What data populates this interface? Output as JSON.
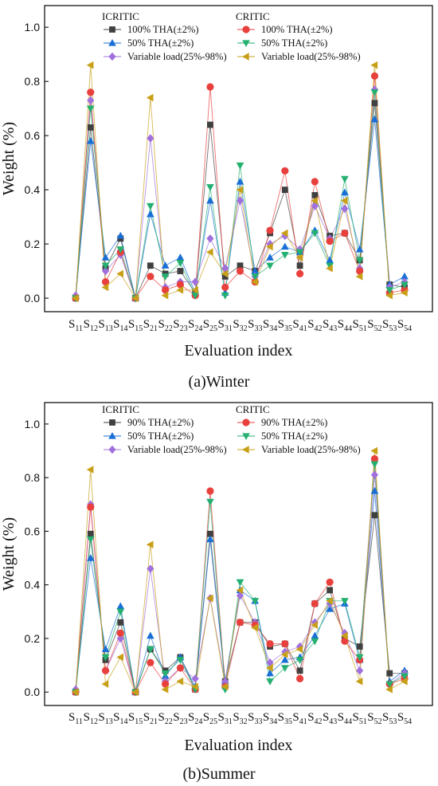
{
  "chart_data": [
    {
      "type": "line",
      "caption": "(a)Winter",
      "xlabel": "Evaluation index",
      "ylabel": "Weight (%)",
      "ylim": [
        -0.05,
        1.08
      ],
      "yticks": [
        "0.0",
        "0.2",
        "0.4",
        "0.6",
        "0.8",
        "1.0"
      ],
      "categories": [
        {
          "main": "S",
          "sub": "11"
        },
        {
          "main": "S",
          "sub": "12"
        },
        {
          "main": "S",
          "sub": "13"
        },
        {
          "main": "S",
          "sub": "14"
        },
        {
          "main": "S",
          "sub": "15"
        },
        {
          "main": "S",
          "sub": "21"
        },
        {
          "main": "S",
          "sub": "22"
        },
        {
          "main": "S",
          "sub": "23"
        },
        {
          "main": "S",
          "sub": "24"
        },
        {
          "main": "S",
          "sub": "25"
        },
        {
          "main": "S",
          "sub": "31"
        },
        {
          "main": "S",
          "sub": "32"
        },
        {
          "main": "S",
          "sub": "33"
        },
        {
          "main": "S",
          "sub": "34"
        },
        {
          "main": "S",
          "sub": "35"
        },
        {
          "main": "S",
          "sub": "41"
        },
        {
          "main": "S",
          "sub": "42"
        },
        {
          "main": "S",
          "sub": "43"
        },
        {
          "main": "S",
          "sub": "44"
        },
        {
          "main": "S",
          "sub": "51"
        },
        {
          "main": "S",
          "sub": "52"
        },
        {
          "main": "S",
          "sub": "53"
        },
        {
          "main": "S",
          "sub": "54"
        }
      ],
      "legend_groups": [
        "ICRITIC",
        "CRITIC"
      ],
      "series": [
        {
          "name": "100% THA(±2%)",
          "group": 0,
          "marker": "square",
          "color": "#404040",
          "values": [
            0.0,
            0.63,
            0.11,
            0.22,
            0.0,
            0.12,
            0.09,
            0.1,
            0.02,
            0.64,
            0.08,
            0.12,
            0.1,
            0.24,
            0.4,
            0.12,
            0.38,
            0.23,
            0.24,
            0.14,
            0.72,
            0.05,
            0.04
          ]
        },
        {
          "name": "50% THA(±2%)",
          "group": 0,
          "marker": "triangle-up",
          "color": "#1a6fd6",
          "values": [
            0.01,
            0.58,
            0.15,
            0.23,
            0.0,
            0.31,
            0.12,
            0.15,
            0.02,
            0.36,
            0.02,
            0.43,
            0.1,
            0.15,
            0.19,
            0.17,
            0.25,
            0.14,
            0.39,
            0.18,
            0.66,
            0.05,
            0.08
          ]
        },
        {
          "name": "Variable load(25%-98%)",
          "group": 0,
          "marker": "diamond",
          "color": "#a070dd",
          "values": [
            0.01,
            0.73,
            0.1,
            0.16,
            0.0,
            0.59,
            0.04,
            0.06,
            0.06,
            0.22,
            0.11,
            0.36,
            0.08,
            0.2,
            0.23,
            0.18,
            0.34,
            0.22,
            0.33,
            0.11,
            0.77,
            0.04,
            0.06
          ]
        },
        {
          "name": "100% THA(±2%)",
          "group": 1,
          "marker": "circle",
          "color": "#e8403c",
          "values": [
            0.0,
            0.76,
            0.06,
            0.17,
            0.0,
            0.08,
            0.03,
            0.05,
            0.01,
            0.78,
            0.04,
            0.1,
            0.06,
            0.25,
            0.47,
            0.09,
            0.43,
            0.21,
            0.24,
            0.1,
            0.82,
            0.02,
            0.03
          ]
        },
        {
          "name": "50% THA(±2%)",
          "group": 1,
          "marker": "triangle-down",
          "color": "#24b070",
          "values": [
            0.0,
            0.7,
            0.12,
            0.18,
            0.0,
            0.34,
            0.08,
            0.13,
            0.01,
            0.41,
            0.01,
            0.49,
            0.08,
            0.12,
            0.16,
            0.17,
            0.24,
            0.12,
            0.44,
            0.14,
            0.76,
            0.03,
            0.05
          ]
        },
        {
          "name": "Variable load(25%-98%)",
          "group": 1,
          "marker": "triangle-left",
          "color": "#c8a018",
          "values": [
            0.0,
            0.86,
            0.04,
            0.09,
            0.0,
            0.74,
            0.01,
            0.03,
            0.03,
            0.17,
            0.09,
            0.4,
            0.06,
            0.19,
            0.24,
            0.15,
            0.36,
            0.11,
            0.36,
            0.08,
            0.86,
            0.01,
            0.02
          ]
        }
      ]
    },
    {
      "type": "line",
      "caption": "(b)Summer",
      "xlabel": "Evaluation index",
      "ylabel": "Weight (%)",
      "ylim": [
        -0.05,
        1.08
      ],
      "yticks": [
        "0.0",
        "0.2",
        "0.4",
        "0.6",
        "0.8",
        "1.0"
      ],
      "categories": [
        {
          "main": "S",
          "sub": "11"
        },
        {
          "main": "S",
          "sub": "12"
        },
        {
          "main": "S",
          "sub": "13"
        },
        {
          "main": "S",
          "sub": "14"
        },
        {
          "main": "S",
          "sub": "15"
        },
        {
          "main": "S",
          "sub": "21"
        },
        {
          "main": "S",
          "sub": "22"
        },
        {
          "main": "S",
          "sub": "23"
        },
        {
          "main": "S",
          "sub": "24"
        },
        {
          "main": "S",
          "sub": "25"
        },
        {
          "main": "S",
          "sub": "31"
        },
        {
          "main": "S",
          "sub": "32"
        },
        {
          "main": "S",
          "sub": "33"
        },
        {
          "main": "S",
          "sub": "34"
        },
        {
          "main": "S",
          "sub": "35"
        },
        {
          "main": "S",
          "sub": "41"
        },
        {
          "main": "S",
          "sub": "42"
        },
        {
          "main": "S",
          "sub": "43"
        },
        {
          "main": "S",
          "sub": "44"
        },
        {
          "main": "S",
          "sub": "51"
        },
        {
          "main": "S",
          "sub": "52"
        },
        {
          "main": "S",
          "sub": "53"
        },
        {
          "main": "S",
          "sub": "54"
        }
      ],
      "legend_groups": [
        "ICRITIC",
        "CRITIC"
      ],
      "series": [
        {
          "name": "90% THA(±2%)",
          "group": 0,
          "marker": "square",
          "color": "#404040",
          "values": [
            0.0,
            0.59,
            0.12,
            0.26,
            0.0,
            0.16,
            0.08,
            0.13,
            0.01,
            0.59,
            0.04,
            0.26,
            0.26,
            0.17,
            0.18,
            0.08,
            0.33,
            0.38,
            0.2,
            0.17,
            0.66,
            0.07,
            0.07
          ]
        },
        {
          "name": "50% THA(±2%)",
          "group": 0,
          "marker": "triangle-up",
          "color": "#1a6fd6",
          "values": [
            0.01,
            0.5,
            0.16,
            0.32,
            0.0,
            0.21,
            0.06,
            0.13,
            0.02,
            0.57,
            0.04,
            0.38,
            0.34,
            0.07,
            0.12,
            0.13,
            0.21,
            0.31,
            0.33,
            0.12,
            0.75,
            0.04,
            0.08
          ]
        },
        {
          "name": "Variable load(25%-98%)",
          "group": 0,
          "marker": "diamond",
          "color": "#a070dd",
          "values": [
            0.01,
            0.7,
            0.08,
            0.2,
            0.0,
            0.46,
            0.04,
            0.09,
            0.05,
            0.35,
            0.04,
            0.36,
            0.26,
            0.11,
            0.15,
            0.17,
            0.26,
            0.33,
            0.22,
            0.08,
            0.81,
            0.03,
            0.07
          ]
        },
        {
          "name": "90% THA(±2%)",
          "group": 1,
          "marker": "circle",
          "color": "#e8403c",
          "values": [
            0.0,
            0.69,
            0.08,
            0.22,
            0.0,
            0.11,
            0.03,
            0.09,
            0.01,
            0.75,
            0.02,
            0.26,
            0.25,
            0.18,
            0.18,
            0.05,
            0.33,
            0.41,
            0.19,
            0.12,
            0.87,
            0.03,
            0.05
          ]
        },
        {
          "name": "50% THA(±2%)",
          "group": 1,
          "marker": "triangle-down",
          "color": "#24b070",
          "values": [
            0.0,
            0.57,
            0.13,
            0.3,
            0.0,
            0.16,
            0.07,
            0.12,
            0.01,
            0.71,
            0.01,
            0.41,
            0.34,
            0.04,
            0.09,
            0.12,
            0.19,
            0.34,
            0.34,
            0.13,
            0.85,
            0.03,
            0.06
          ]
        },
        {
          "name": "Variable load(25%-98%)",
          "group": 1,
          "marker": "triangle-left",
          "color": "#c8a018",
          "values": [
            0.0,
            0.83,
            0.03,
            0.13,
            0.0,
            0.55,
            0.01,
            0.04,
            0.02,
            0.35,
            0.02,
            0.38,
            0.24,
            0.09,
            0.14,
            0.16,
            0.25,
            0.34,
            0.21,
            0.04,
            0.9,
            0.01,
            0.04
          ]
        }
      ]
    }
  ]
}
